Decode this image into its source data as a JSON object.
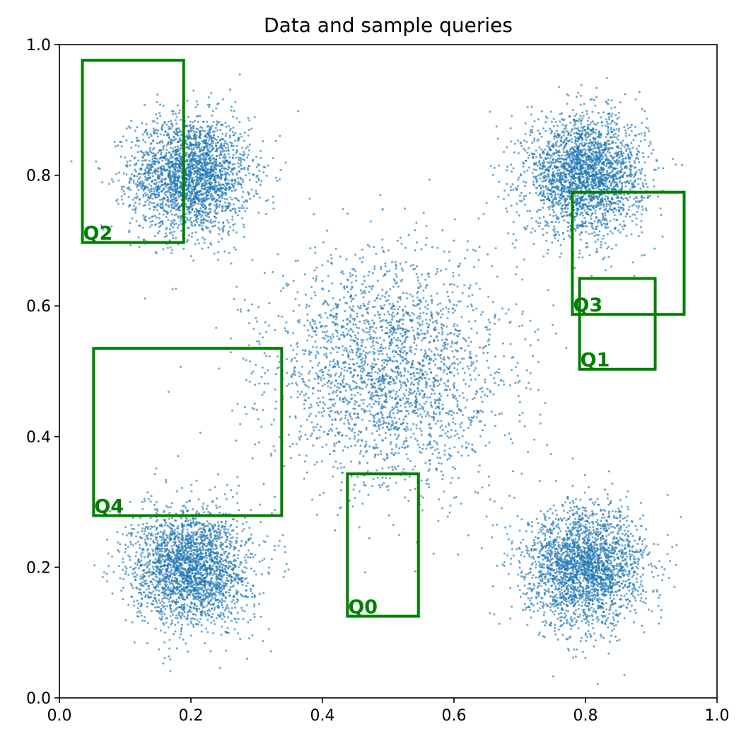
{
  "chart_data": {
    "type": "scatter",
    "title": "Data and sample queries",
    "xlabel": "",
    "ylabel": "",
    "xlim": [
      0.0,
      1.0
    ],
    "ylim": [
      0.0,
      1.0
    ],
    "x_ticks": [
      "0.0",
      "0.2",
      "0.4",
      "0.6",
      "0.8",
      "1.0"
    ],
    "y_ticks": [
      "0.0",
      "0.2",
      "0.4",
      "0.6",
      "0.8",
      "1.0"
    ],
    "grid": false,
    "point_color": "#1f77b4",
    "query_color": "#008000",
    "clusters": [
      {
        "center": [
          0.2,
          0.8
        ],
        "std": 0.045,
        "count": 2500
      },
      {
        "center": [
          0.8,
          0.8
        ],
        "std": 0.045,
        "count": 2500
      },
      {
        "center": [
          0.2,
          0.2
        ],
        "std": 0.045,
        "count": 2500
      },
      {
        "center": [
          0.8,
          0.2
        ],
        "std": 0.045,
        "count": 2500
      },
      {
        "center": [
          0.5,
          0.5
        ],
        "std": 0.09,
        "count": 2500
      }
    ],
    "queries": [
      {
        "label": "Q0",
        "x0": 0.438,
        "x1": 0.546,
        "y0": 0.125,
        "y1": 0.343
      },
      {
        "label": "Q1",
        "x0": 0.791,
        "x1": 0.906,
        "y0": 0.503,
        "y1": 0.642
      },
      {
        "label": "Q2",
        "x0": 0.035,
        "x1": 0.189,
        "y0": 0.697,
        "y1": 0.976
      },
      {
        "label": "Q3",
        "x0": 0.78,
        "x1": 0.95,
        "y0": 0.587,
        "y1": 0.774
      },
      {
        "label": "Q4",
        "x0": 0.052,
        "x1": 0.338,
        "y0": 0.279,
        "y1": 0.535
      }
    ]
  }
}
